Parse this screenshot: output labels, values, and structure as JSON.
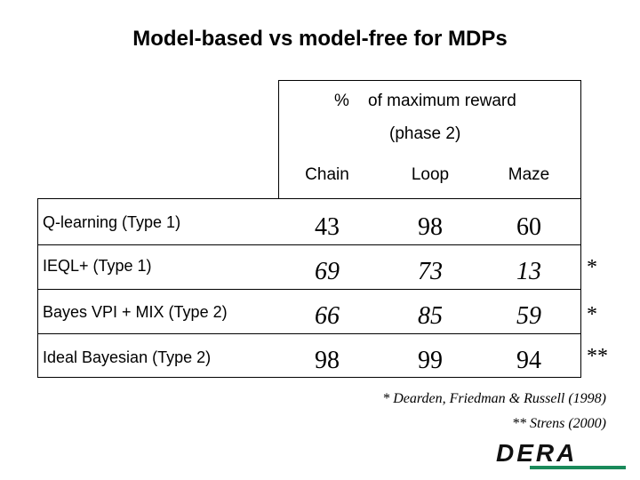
{
  "slide": {
    "title": "Model-based vs model-free for MDPs"
  },
  "table": {
    "percent_symbol": "%",
    "header_line1": "of maximum reward",
    "header_line2": "(phase 2)",
    "columns": [
      "Chain",
      "Loop",
      "Maze"
    ],
    "rows": [
      {
        "label": "Q-learning (Type 1)",
        "values": [
          "43",
          "98",
          "60"
        ],
        "mark": ""
      },
      {
        "label": "IEQL+ (Type 1)",
        "values": [
          "69",
          "73",
          "13"
        ],
        "mark": "*"
      },
      {
        "label": "Bayes VPI + MIX (Type 2)",
        "values": [
          "66",
          "85",
          "59"
        ],
        "mark": "*"
      },
      {
        "label": "Ideal Bayesian (Type 2)",
        "values": [
          "98",
          "99",
          "94"
        ],
        "mark": "**"
      }
    ]
  },
  "footnotes": {
    "note1": "* Dearden, Friedman & Russell (1998)",
    "note2": "** Strens (2000)"
  },
  "logo": {
    "text": "DERA",
    "icon": "dera-logo",
    "accent_color": "#1a8a5a",
    "ink_color": "#111111"
  }
}
